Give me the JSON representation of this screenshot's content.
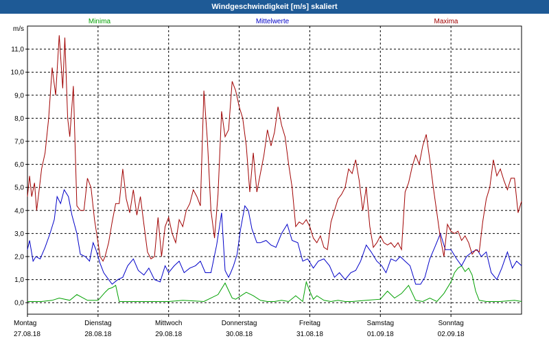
{
  "window": {
    "title": "Windgeschwindigkeit [m/s] skaliert"
  },
  "chart_data": {
    "type": "line",
    "title": "Windgeschwindigkeit [m/s] skaliert",
    "ylabel": "m/s",
    "xlabel": "",
    "ylim": [
      -0.5,
      12.0
    ],
    "xlim": [
      0,
      7
    ],
    "yticks": [
      0.0,
      1.0,
      2.0,
      3.0,
      4.0,
      5.0,
      6.0,
      7.0,
      8.0,
      9.0,
      10.0,
      11.0
    ],
    "ytick_labels": [
      "0,0",
      "1,0",
      "2,0",
      "3,0",
      "4,0",
      "5,0",
      "6,0",
      "7,0",
      "8,0",
      "9,0",
      "10,0",
      "11,0"
    ],
    "x_ticks": [
      {
        "day": "Montag",
        "date": "27.08.18"
      },
      {
        "day": "Dienstag",
        "date": "28.08.18"
      },
      {
        "day": "Mittwoch",
        "date": "29.08.18"
      },
      {
        "day": "Donnerstag",
        "date": "30.08.18"
      },
      {
        "day": "Freitag",
        "date": "31.08.18"
      },
      {
        "day": "Samstag",
        "date": "01.09.18"
      },
      {
        "day": "Sonntag",
        "date": "02.09.18"
      }
    ],
    "grid": true,
    "legend_position": "top",
    "series": [
      {
        "name": "Minima",
        "color": "#00a000",
        "x": [
          0,
          0.2,
          0.35,
          0.45,
          0.6,
          0.7,
          0.85,
          1.0,
          1.1,
          1.15,
          1.2,
          1.25,
          1.3,
          1.4,
          1.6,
          1.8,
          2.0,
          2.2,
          2.5,
          2.7,
          2.8,
          2.9,
          2.95,
          3.0,
          3.1,
          3.2,
          3.3,
          3.4,
          3.5,
          3.6,
          3.7,
          3.8,
          3.9,
          3.95,
          4.0,
          4.05,
          4.1,
          4.2,
          4.3,
          4.4,
          4.5,
          4.6,
          4.8,
          5.0,
          5.1,
          5.2,
          5.3,
          5.4,
          5.5,
          5.6,
          5.7,
          5.8,
          5.9,
          6.0,
          6.05,
          6.1,
          6.15,
          6.2,
          6.25,
          6.3,
          6.35,
          6.4,
          6.5,
          6.7,
          6.9,
          7.0
        ],
        "y": [
          0.05,
          0.05,
          0.1,
          0.2,
          0.1,
          0.35,
          0.1,
          0.1,
          0.45,
          0.6,
          0.65,
          0.75,
          0.05,
          0.05,
          0.05,
          0.05,
          0.05,
          0.1,
          0.05,
          0.35,
          0.85,
          0.2,
          0.15,
          0.25,
          0.45,
          0.3,
          0.1,
          0.05,
          0.05,
          0.1,
          0.05,
          0.3,
          0.05,
          0.9,
          0.5,
          0.15,
          0.3,
          0.1,
          0.05,
          0.1,
          0.05,
          0.05,
          0.1,
          0.15,
          0.5,
          0.2,
          0.4,
          0.75,
          0.1,
          0.05,
          0.2,
          0.05,
          0.4,
          0.9,
          1.3,
          1.5,
          1.6,
          1.35,
          1.5,
          1.2,
          0.5,
          0.1,
          0.05,
          0.05,
          0.1,
          0.05
        ]
      },
      {
        "name": "Mittelwerte",
        "color": "#0000c8",
        "x": [
          0,
          0.03,
          0.08,
          0.12,
          0.18,
          0.25,
          0.32,
          0.38,
          0.42,
          0.47,
          0.52,
          0.58,
          0.63,
          0.7,
          0.75,
          0.82,
          0.88,
          0.93,
          0.97,
          1.03,
          1.08,
          1.15,
          1.2,
          1.28,
          1.35,
          1.42,
          1.5,
          1.57,
          1.65,
          1.72,
          1.8,
          1.88,
          1.95,
          2.0,
          2.08,
          2.15,
          2.22,
          2.3,
          2.38,
          2.45,
          2.52,
          2.6,
          2.68,
          2.75,
          2.8,
          2.85,
          2.88,
          2.92,
          2.97,
          3.02,
          3.08,
          3.13,
          3.18,
          3.25,
          3.3,
          3.38,
          3.45,
          3.52,
          3.6,
          3.68,
          3.75,
          3.83,
          3.9,
          3.97,
          4.05,
          4.12,
          4.2,
          4.28,
          4.35,
          4.42,
          4.5,
          4.58,
          4.65,
          4.72,
          4.8,
          4.87,
          4.95,
          5.02,
          5.08,
          5.15,
          5.22,
          5.28,
          5.35,
          5.42,
          5.5,
          5.57,
          5.63,
          5.7,
          5.77,
          5.85,
          5.92,
          6.0,
          6.08,
          6.15,
          6.22,
          6.3,
          6.37,
          6.43,
          6.5,
          6.57,
          6.65,
          6.72,
          6.8,
          6.87,
          6.93,
          7.0
        ],
        "y": [
          2.3,
          2.7,
          1.8,
          2.0,
          1.9,
          2.4,
          3.0,
          3.6,
          4.6,
          4.3,
          4.9,
          4.6,
          3.8,
          3.0,
          2.1,
          2.0,
          1.8,
          2.6,
          2.3,
          1.7,
          1.3,
          1.0,
          0.8,
          1.0,
          1.1,
          1.6,
          1.9,
          1.4,
          1.2,
          1.5,
          1.0,
          0.9,
          1.6,
          1.3,
          1.6,
          1.8,
          1.3,
          1.5,
          1.6,
          1.8,
          1.3,
          1.3,
          2.5,
          3.9,
          1.4,
          1.1,
          1.3,
          1.6,
          2.1,
          3.2,
          4.2,
          4.0,
          3.2,
          2.6,
          2.6,
          2.7,
          2.5,
          2.4,
          3.0,
          3.4,
          2.7,
          2.6,
          1.8,
          1.9,
          1.5,
          1.8,
          1.9,
          1.6,
          1.1,
          1.3,
          1.0,
          1.3,
          1.4,
          1.8,
          2.5,
          2.2,
          1.8,
          1.6,
          1.3,
          1.9,
          1.8,
          2.0,
          1.8,
          1.6,
          0.8,
          0.8,
          1.1,
          1.9,
          2.4,
          3.0,
          2.3,
          2.3,
          1.9,
          1.6,
          2.0,
          2.2,
          2.3,
          2.0,
          2.2,
          1.3,
          1.0,
          1.5,
          2.2,
          1.5,
          1.8,
          1.6
        ]
      },
      {
        "name": "Maxima",
        "color": "#a00000",
        "x": [
          0,
          0.03,
          0.06,
          0.1,
          0.13,
          0.17,
          0.2,
          0.25,
          0.3,
          0.35,
          0.4,
          0.45,
          0.5,
          0.53,
          0.57,
          0.6,
          0.65,
          0.7,
          0.75,
          0.8,
          0.85,
          0.9,
          0.95,
          1.0,
          1.03,
          1.07,
          1.1,
          1.15,
          1.2,
          1.25,
          1.3,
          1.35,
          1.4,
          1.45,
          1.5,
          1.55,
          1.6,
          1.65,
          1.7,
          1.75,
          1.8,
          1.85,
          1.9,
          1.95,
          2.0,
          2.05,
          2.1,
          2.15,
          2.2,
          2.25,
          2.3,
          2.35,
          2.4,
          2.45,
          2.5,
          2.55,
          2.6,
          2.65,
          2.7,
          2.75,
          2.8,
          2.85,
          2.9,
          2.95,
          3.0,
          3.05,
          3.1,
          3.15,
          3.2,
          3.25,
          3.3,
          3.35,
          3.4,
          3.45,
          3.5,
          3.55,
          3.6,
          3.65,
          3.7,
          3.75,
          3.8,
          3.85,
          3.9,
          3.95,
          4.0,
          4.05,
          4.1,
          4.15,
          4.2,
          4.25,
          4.3,
          4.35,
          4.4,
          4.45,
          4.5,
          4.55,
          4.6,
          4.65,
          4.7,
          4.75,
          4.8,
          4.85,
          4.9,
          4.95,
          5.0,
          5.05,
          5.1,
          5.15,
          5.2,
          5.25,
          5.3,
          5.35,
          5.4,
          5.45,
          5.5,
          5.55,
          5.6,
          5.65,
          5.7,
          5.75,
          5.8,
          5.85,
          5.9,
          5.95,
          6.0,
          6.05,
          6.1,
          6.15,
          6.2,
          6.25,
          6.3,
          6.35,
          6.4,
          6.45,
          6.5,
          6.55,
          6.6,
          6.65,
          6.7,
          6.75,
          6.8,
          6.85,
          6.9,
          6.95,
          7.0
        ],
        "y": [
          4.6,
          5.5,
          4.6,
          5.2,
          4.0,
          5.0,
          5.8,
          6.5,
          8.0,
          10.2,
          9.0,
          11.6,
          9.3,
          11.5,
          8.0,
          7.2,
          9.4,
          4.2,
          4.0,
          4.0,
          5.4,
          5.0,
          3.6,
          2.6,
          2.0,
          1.8,
          2.0,
          2.6,
          3.5,
          4.3,
          4.3,
          5.8,
          4.5,
          3.9,
          4.9,
          3.8,
          4.6,
          3.4,
          2.2,
          1.9,
          2.0,
          3.7,
          2.0,
          3.3,
          3.7,
          3.0,
          2.6,
          3.6,
          3.3,
          4.0,
          4.3,
          4.9,
          4.6,
          4.2,
          9.2,
          7.0,
          4.0,
          2.8,
          4.7,
          8.3,
          7.2,
          7.5,
          9.6,
          9.2,
          8.5,
          8.0,
          6.8,
          4.8,
          6.5,
          4.8,
          5.6,
          6.4,
          7.5,
          6.8,
          7.4,
          8.5,
          7.7,
          7.2,
          6.0,
          5.0,
          3.3,
          3.5,
          3.4,
          3.6,
          3.3,
          2.8,
          2.6,
          2.9,
          2.4,
          2.3,
          3.5,
          4.0,
          4.5,
          4.7,
          5.0,
          5.8,
          5.6,
          6.2,
          5.3,
          4.0,
          5.0,
          3.3,
          2.4,
          2.6,
          2.9,
          2.6,
          2.5,
          2.6,
          2.4,
          2.6,
          2.3,
          4.8,
          5.2,
          5.9,
          6.4,
          6.0,
          6.8,
          7.3,
          6.2,
          5.0,
          3.9,
          2.8,
          2.0,
          3.4,
          3.1,
          3.0,
          3.1,
          2.7,
          2.9,
          2.6,
          2.1,
          2.3,
          2.2,
          3.5,
          4.5,
          5.0,
          6.2,
          5.5,
          5.8,
          5.3,
          4.9,
          5.4,
          5.4,
          3.9,
          4.4
        ]
      }
    ]
  }
}
